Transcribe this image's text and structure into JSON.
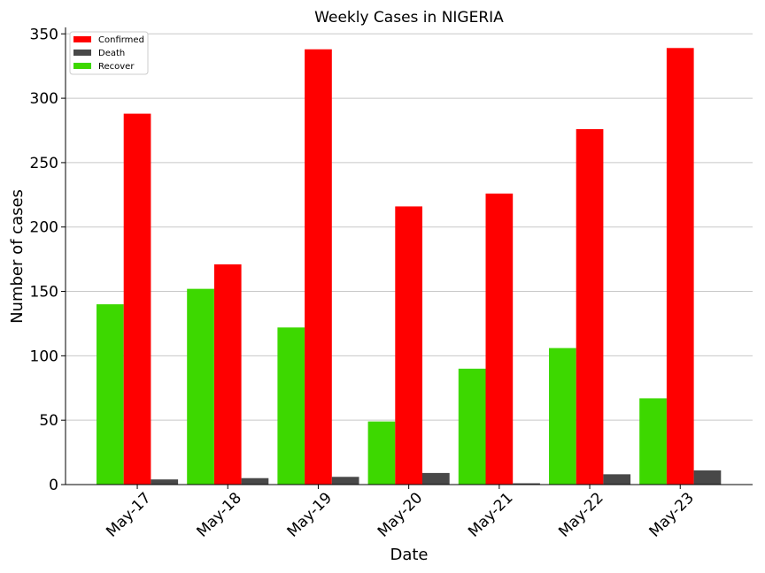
{
  "chart_data": {
    "type": "bar",
    "title": "Weekly Cases in NIGERIA",
    "xlabel": "Date",
    "ylabel": "Number of cases",
    "categories": [
      "May-17",
      "May-18",
      "May-19",
      "May-20",
      "May-21",
      "May-22",
      "May-23"
    ],
    "series": [
      {
        "name": "Recover",
        "color": "#3dd800",
        "values": [
          140,
          152,
          122,
          49,
          90,
          106,
          67
        ]
      },
      {
        "name": "Confirmed",
        "color": "#ff0000",
        "values": [
          288,
          171,
          338,
          216,
          226,
          276,
          339
        ]
      },
      {
        "name": "Death",
        "color": "#484848",
        "values": [
          4,
          5,
          6,
          9,
          1,
          8,
          11
        ]
      }
    ],
    "legend_order": [
      "Confirmed",
      "Death",
      "Recover"
    ],
    "legend_position": "top-left",
    "ylim": [
      0,
      355
    ],
    "yticks": [
      0,
      50,
      100,
      150,
      200,
      250,
      300,
      350
    ],
    "grid": "horizontal"
  }
}
